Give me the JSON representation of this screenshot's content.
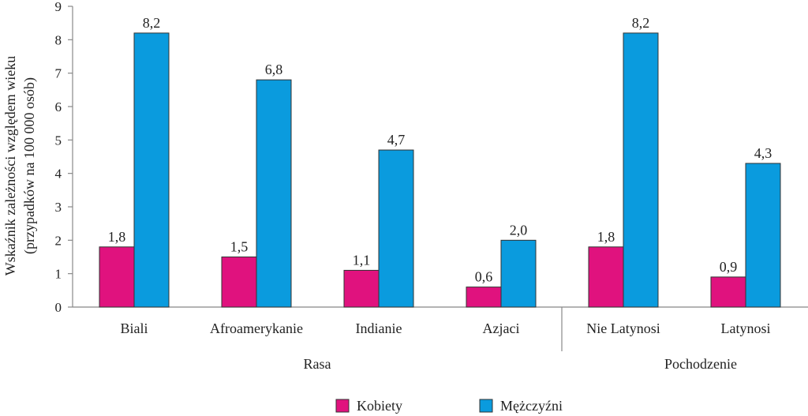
{
  "chart_data": {
    "type": "bar",
    "ylabel_line1": "Wskaźnik zależności względem wieku",
    "ylabel_line2": "(przypadków na 100 000 osób)",
    "ylim": [
      0,
      9
    ],
    "yticks": [
      "0",
      "1",
      "2",
      "3",
      "4",
      "5",
      "6",
      "7",
      "8",
      "9"
    ],
    "categories": [
      "Biali",
      "Afroamerykanie",
      "Indianie",
      "Azjaci",
      "Nie Latynosi",
      "Latynosi"
    ],
    "groups": [
      {
        "label": "Rasa",
        "categories": [
          0,
          1,
          2,
          3
        ]
      },
      {
        "label": "Pochodzenie",
        "categories": [
          4,
          5
        ]
      }
    ],
    "series": [
      {
        "name": "Kobiety",
        "color": "#e0127e",
        "values": [
          1.8,
          1.5,
          1.1,
          0.6,
          1.8,
          0.9
        ],
        "labels": [
          "1,8",
          "1,5",
          "1,1",
          "0,6",
          "1,8",
          "0,9"
        ]
      },
      {
        "name": "Mężczyźni",
        "color": "#0a9bde",
        "values": [
          8.2,
          6.8,
          4.7,
          2.0,
          8.2,
          4.3
        ],
        "labels": [
          "8,2",
          "6,8",
          "4,7",
          "2,0",
          "8,2",
          "4,3"
        ]
      }
    ],
    "grid": false,
    "legend_position": "bottom-center"
  }
}
